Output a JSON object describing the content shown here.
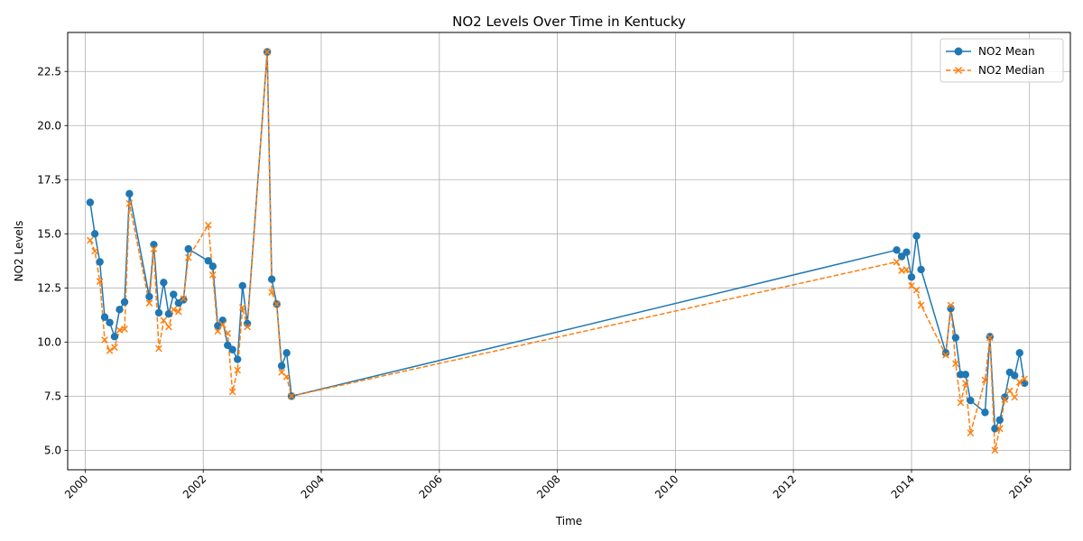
{
  "chart_data": {
    "type": "line",
    "title": "NO2 Levels Over Time in Kentucky",
    "xlabel": "Time",
    "ylabel": "NO2 Levels",
    "x_ticks": [
      "2000",
      "2002",
      "2004",
      "2006",
      "2008",
      "2010",
      "2012",
      "2014",
      "2016"
    ],
    "y_ticks": [
      "5.0",
      "7.5",
      "10.0",
      "12.5",
      "15.0",
      "17.5",
      "20.0",
      "22.5"
    ],
    "xlim": [
      "1999-09-15",
      "2016-09-10"
    ],
    "ylim": [
      4.1,
      24.3
    ],
    "grid": true,
    "legend_position": "top-right",
    "colors": {
      "mean": "#1f77b4",
      "median": "#ff7f0e"
    },
    "series": [
      {
        "name": "NO2 Mean",
        "style": "solid-circle",
        "points": [
          [
            "2000-02-01",
            16.45
          ],
          [
            "2000-03-01",
            15.0
          ],
          [
            "2000-04-01",
            13.7
          ],
          [
            "2000-05-01",
            11.15
          ],
          [
            "2000-06-01",
            10.9
          ],
          [
            "2000-07-01",
            10.25
          ],
          [
            "2000-08-01",
            11.5
          ],
          [
            "2000-09-01",
            11.85
          ],
          [
            "2000-10-01",
            16.85
          ],
          [
            "2001-02-01",
            12.1
          ],
          [
            "2001-03-01",
            14.5
          ],
          [
            "2001-04-01",
            11.35
          ],
          [
            "2001-05-01",
            12.75
          ],
          [
            "2001-06-01",
            11.3
          ],
          [
            "2001-07-01",
            12.2
          ],
          [
            "2001-08-01",
            11.8
          ],
          [
            "2001-09-01",
            11.95
          ],
          [
            "2001-10-01",
            14.3
          ],
          [
            "2002-02-01",
            13.75
          ],
          [
            "2002-03-01",
            13.5
          ],
          [
            "2002-04-01",
            10.75
          ],
          [
            "2002-05-01",
            11.0
          ],
          [
            "2002-06-01",
            9.85
          ],
          [
            "2002-07-01",
            9.65
          ],
          [
            "2002-08-01",
            9.2
          ],
          [
            "2002-09-01",
            12.6
          ],
          [
            "2002-10-01",
            10.85
          ],
          [
            "2003-02-01",
            23.4
          ],
          [
            "2003-03-01",
            12.9
          ],
          [
            "2003-04-01",
            11.75
          ],
          [
            "2003-05-01",
            8.9
          ],
          [
            "2003-06-01",
            9.5
          ],
          [
            "2003-07-01",
            7.5
          ],
          [
            "2013-10-01",
            14.25
          ],
          [
            "2013-11-01",
            13.95
          ],
          [
            "2013-12-01",
            14.15
          ],
          [
            "2014-01-01",
            13.0
          ],
          [
            "2014-02-01",
            14.9
          ],
          [
            "2014-03-01",
            13.35
          ],
          [
            "2014-08-01",
            9.5
          ],
          [
            "2014-09-01",
            11.55
          ],
          [
            "2014-10-01",
            10.2
          ],
          [
            "2014-11-01",
            8.5
          ],
          [
            "2014-12-01",
            8.5
          ],
          [
            "2015-01-01",
            7.3
          ],
          [
            "2015-04-01",
            6.75
          ],
          [
            "2015-05-01",
            10.25
          ],
          [
            "2015-06-01",
            6.0
          ],
          [
            "2015-07-01",
            6.4
          ],
          [
            "2015-08-01",
            7.45
          ],
          [
            "2015-09-01",
            8.6
          ],
          [
            "2015-10-01",
            8.45
          ],
          [
            "2015-11-01",
            9.5
          ],
          [
            "2015-12-01",
            8.1
          ]
        ]
      },
      {
        "name": "NO2 Median",
        "style": "dashed-x",
        "points": [
          [
            "2000-02-01",
            14.7
          ],
          [
            "2000-03-01",
            14.2
          ],
          [
            "2000-04-01",
            12.8
          ],
          [
            "2000-05-01",
            10.1
          ],
          [
            "2000-06-01",
            9.6
          ],
          [
            "2000-07-01",
            9.75
          ],
          [
            "2000-08-01",
            10.55
          ],
          [
            "2000-09-01",
            10.6
          ],
          [
            "2000-10-01",
            16.4
          ],
          [
            "2001-02-01",
            11.8
          ],
          [
            "2001-03-01",
            14.3
          ],
          [
            "2001-04-01",
            9.7
          ],
          [
            "2001-05-01",
            11.0
          ],
          [
            "2001-06-01",
            10.7
          ],
          [
            "2001-07-01",
            11.5
          ],
          [
            "2001-08-01",
            11.4
          ],
          [
            "2001-09-01",
            12.0
          ],
          [
            "2001-10-01",
            13.9
          ],
          [
            "2002-02-01",
            15.4
          ],
          [
            "2002-03-01",
            13.1
          ],
          [
            "2002-04-01",
            10.5
          ],
          [
            "2002-05-01",
            10.8
          ],
          [
            "2002-06-01",
            10.4
          ],
          [
            "2002-07-01",
            7.7
          ],
          [
            "2002-08-01",
            8.7
          ],
          [
            "2002-09-01",
            11.6
          ],
          [
            "2002-10-01",
            10.7
          ],
          [
            "2003-02-01",
            23.4
          ],
          [
            "2003-03-01",
            12.3
          ],
          [
            "2003-04-01",
            11.75
          ],
          [
            "2003-05-01",
            8.6
          ],
          [
            "2003-06-01",
            8.4
          ],
          [
            "2003-07-01",
            7.5
          ],
          [
            "2013-10-01",
            13.7
          ],
          [
            "2013-11-01",
            13.3
          ],
          [
            "2013-12-01",
            13.35
          ],
          [
            "2014-01-01",
            12.6
          ],
          [
            "2014-02-01",
            12.4
          ],
          [
            "2014-03-01",
            11.7
          ],
          [
            "2014-08-01",
            9.4
          ],
          [
            "2014-09-01",
            11.7
          ],
          [
            "2014-10-01",
            9.0
          ],
          [
            "2014-11-01",
            7.2
          ],
          [
            "2014-12-01",
            8.1
          ],
          [
            "2015-01-01",
            5.8
          ],
          [
            "2015-04-01",
            8.25
          ],
          [
            "2015-05-01",
            10.2
          ],
          [
            "2015-06-01",
            5.0
          ],
          [
            "2015-07-01",
            6.0
          ],
          [
            "2015-08-01",
            7.35
          ],
          [
            "2015-09-01",
            7.75
          ],
          [
            "2015-10-01",
            7.45
          ],
          [
            "2015-11-01",
            8.15
          ],
          [
            "2015-12-01",
            8.3
          ]
        ]
      }
    ]
  }
}
